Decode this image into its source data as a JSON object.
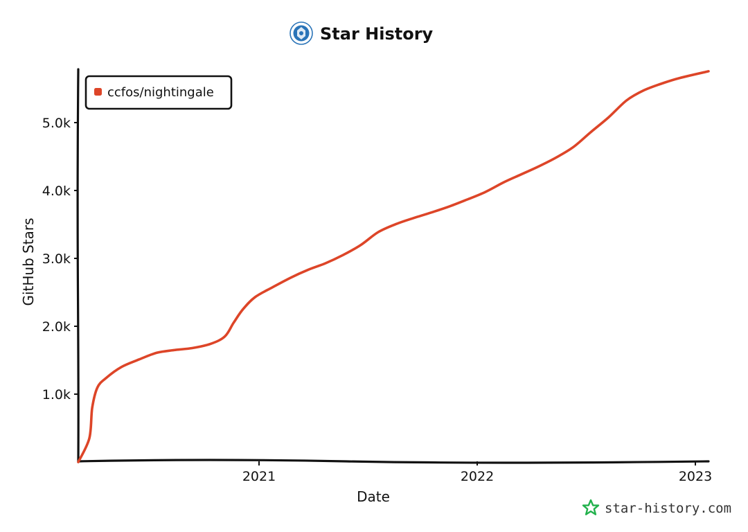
{
  "chart_data": {
    "type": "line",
    "title": "Star History",
    "xlabel": "Date",
    "ylabel": "GitHub Stars",
    "x_tick_labels": [
      "2021",
      "2022",
      "2023"
    ],
    "y_tick_labels": [
      "1.0k",
      "2.0k",
      "3.0k",
      "4.0k",
      "5.0k"
    ],
    "ylim": [
      0,
      5800
    ],
    "xlim": [
      "2020-02-01",
      "2023-01-20"
    ],
    "grid": false,
    "legend_position": "top-left",
    "series": [
      {
        "name": "ccfos/nightingale",
        "color": "#dd4528",
        "points": [
          [
            "2020-02-01",
            0
          ],
          [
            "2020-02-20",
            350
          ],
          [
            "2020-02-25",
            800
          ],
          [
            "2020-03-05",
            1100
          ],
          [
            "2020-03-20",
            1240
          ],
          [
            "2020-04-15",
            1400
          ],
          [
            "2020-05-15",
            1510
          ],
          [
            "2020-06-15",
            1610
          ],
          [
            "2020-07-15",
            1650
          ],
          [
            "2020-08-15",
            1680
          ],
          [
            "2020-09-15",
            1740
          ],
          [
            "2020-10-10",
            1850
          ],
          [
            "2020-10-25",
            2050
          ],
          [
            "2020-11-10",
            2250
          ],
          [
            "2020-12-01",
            2430
          ],
          [
            "2021-01-01",
            2580
          ],
          [
            "2021-02-01",
            2720
          ],
          [
            "2021-03-01",
            2830
          ],
          [
            "2021-04-01",
            2930
          ],
          [
            "2021-05-01",
            3050
          ],
          [
            "2021-06-01",
            3200
          ],
          [
            "2021-07-01",
            3390
          ],
          [
            "2021-08-01",
            3510
          ],
          [
            "2021-09-01",
            3600
          ],
          [
            "2021-10-01",
            3680
          ],
          [
            "2021-11-01",
            3770
          ],
          [
            "2021-12-01",
            3870
          ],
          [
            "2022-01-01",
            3980
          ],
          [
            "2022-02-01",
            4120
          ],
          [
            "2022-03-01",
            4230
          ],
          [
            "2022-04-01",
            4350
          ],
          [
            "2022-05-01",
            4480
          ],
          [
            "2022-06-01",
            4640
          ],
          [
            "2022-07-01",
            4860
          ],
          [
            "2022-08-01",
            5080
          ],
          [
            "2022-09-01",
            5330
          ],
          [
            "2022-10-01",
            5480
          ],
          [
            "2022-11-01",
            5580
          ],
          [
            "2022-12-01",
            5660
          ],
          [
            "2023-01-20",
            5760
          ]
        ]
      }
    ]
  },
  "watermark": {
    "text": "star-history.com",
    "icon": "star-outline-icon",
    "color": "#22b14c"
  },
  "logo": {
    "icon": "ccf-logo-icon"
  },
  "axis_color": "#111111"
}
